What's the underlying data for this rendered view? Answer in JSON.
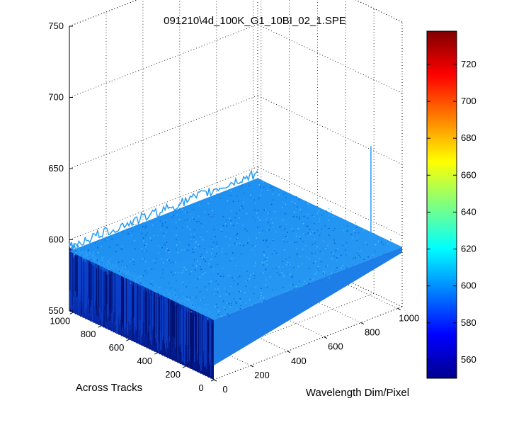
{
  "chart_data": {
    "type": "surface",
    "title": "091210\\4d_100K_G1_10BI_02_1.SPE",
    "xlabel": "Wavelength Dim/Pixel",
    "ylabel": "Across Tracks",
    "zlabel": "",
    "x_ticks": [
      "0",
      "200",
      "400",
      "600",
      "800",
      "1000"
    ],
    "y_ticks": [
      "0",
      "200",
      "400",
      "600",
      "800",
      "1000"
    ],
    "z_ticks": [
      "550",
      "600",
      "650",
      "700",
      "750"
    ],
    "xlim": [
      0,
      1024
    ],
    "ylim": [
      0,
      1024
    ],
    "zlim": [
      550,
      750
    ],
    "grid": true,
    "surface": {
      "baseline": 592,
      "noise_range": [
        585,
        600
      ],
      "spike": {
        "x": 1000,
        "y": 190,
        "z": 655
      }
    },
    "colorbar": {
      "colormap": "jet",
      "range": [
        550,
        738
      ],
      "ticks": [
        "560",
        "580",
        "600",
        "620",
        "640",
        "660",
        "680",
        "700",
        "720"
      ]
    }
  }
}
